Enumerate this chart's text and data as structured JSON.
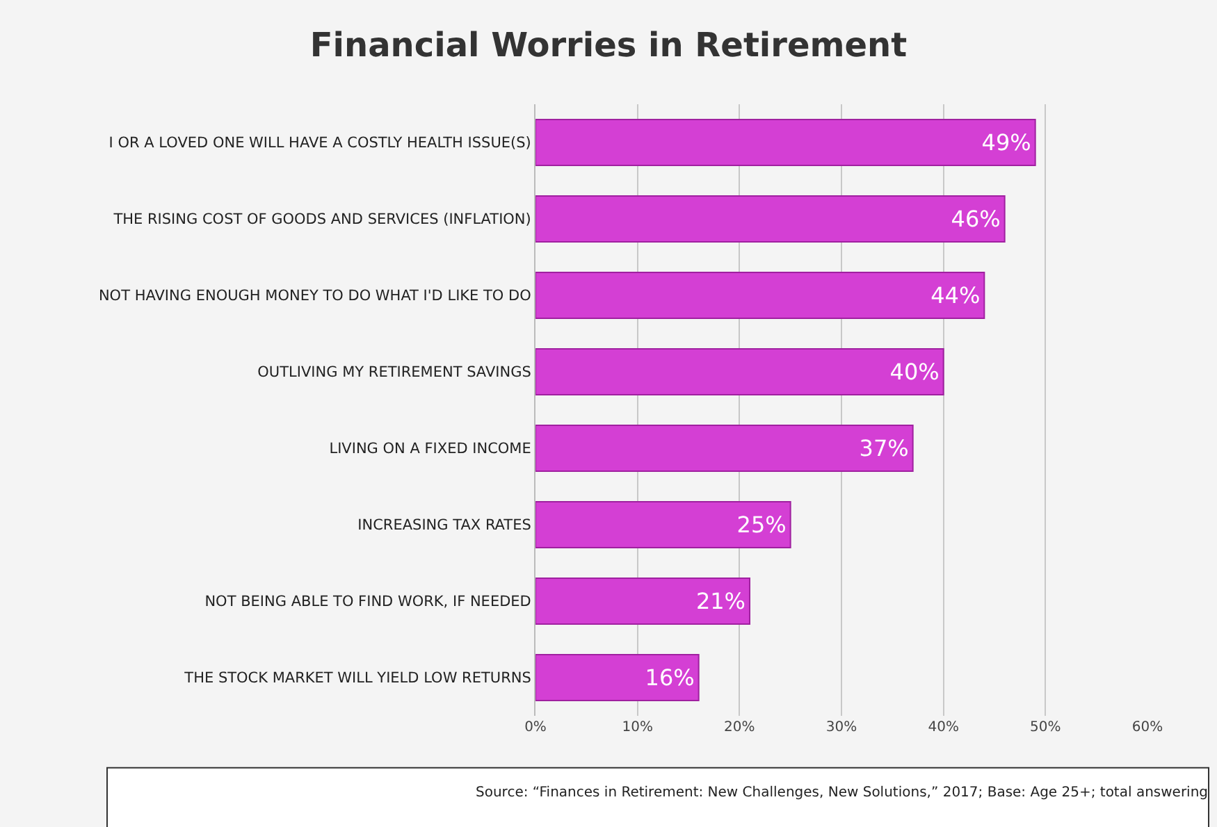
{
  "chart_data": {
    "type": "bar",
    "orientation": "horizontal",
    "title": "Financial Worries in Retirement",
    "categories": [
      "I OR A LOVED ONE WILL HAVE A COSTLY HEALTH ISSUE(S)",
      "THE RISING COST OF GOODS AND SERVICES (INFLATION)",
      "NOT HAVING ENOUGH MONEY TO DO WHAT I'D LIKE TO DO",
      "OUTLIVING MY RETIREMENT SAVINGS",
      "LIVING ON A FIXED INCOME",
      "INCREASING TAX RATES",
      "NOT BEING ABLE TO FIND WORK, IF NEEDED",
      "THE STOCK MARKET WILL YIELD LOW RETURNS"
    ],
    "values": [
      49,
      46,
      44,
      40,
      37,
      25,
      21,
      16
    ],
    "value_labels": [
      "49%",
      "46%",
      "44%",
      "40%",
      "37%",
      "25%",
      "21%",
      "16%"
    ],
    "color": "#d43fd4",
    "xlim": [
      0,
      60
    ],
    "xticks": [
      {
        "value": 0,
        "label": "0%"
      },
      {
        "value": 10,
        "label": "10%"
      },
      {
        "value": 20,
        "label": "20%"
      },
      {
        "value": 30,
        "label": "30%"
      },
      {
        "value": 40,
        "label": "40%"
      },
      {
        "value": 50,
        "label": "50%"
      },
      {
        "value": 60,
        "label": "60%"
      }
    ],
    "grid": "x",
    "annotations": [
      "Source: “Finances in Retirement: New Challenges, New Solutions,” 2017; Base: Age 25+; total answering"
    ]
  }
}
